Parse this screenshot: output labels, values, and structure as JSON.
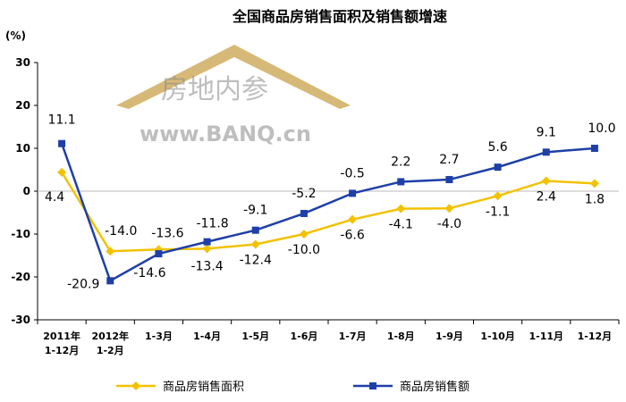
{
  "chart_data": {
    "type": "line",
    "title": "全国商品房销售面积及销售额增速",
    "ylabel": "(%)",
    "ylim": [
      -30,
      30
    ],
    "yticks": [
      -30,
      -20,
      -10,
      0,
      10,
      20,
      30
    ],
    "grid": false,
    "legend_position": "bottom",
    "categories": [
      [
        "2011年",
        "1-12月"
      ],
      [
        "2012年",
        "1-2月"
      ],
      [
        "1-3月"
      ],
      [
        "1-4月"
      ],
      [
        "1-5月"
      ],
      [
        "1-6月"
      ],
      [
        "1-7月"
      ],
      [
        "1-8月"
      ],
      [
        "1-9月"
      ],
      [
        "1-10月"
      ],
      [
        "1-11月"
      ],
      [
        "1-12月"
      ]
    ],
    "series": [
      {
        "name": "商品房销售面积",
        "color": "#f2c200",
        "marker": "diamond",
        "values": [
          4.4,
          -14.0,
          -13.6,
          -13.4,
          -12.4,
          -10.0,
          -6.6,
          -4.1,
          -4.0,
          -1.1,
          2.4,
          1.8
        ],
        "labels": [
          "4.4",
          "-14.0",
          "-13.6",
          "-13.4",
          "-12.4",
          "-10.0",
          "-6.6",
          "-4.1",
          "-4.0",
          "-1.1",
          "2.4",
          "1.8"
        ]
      },
      {
        "name": "商品房销售额",
        "color": "#1f3fa8",
        "marker": "square",
        "values": [
          11.1,
          -20.9,
          -14.6,
          -11.8,
          -9.1,
          -5.2,
          -0.5,
          2.2,
          2.7,
          5.6,
          9.1,
          10.0
        ],
        "labels": [
          "11.1",
          "-20.9",
          "-14.6",
          "-11.8",
          "-9.1",
          "-5.2",
          "-0.5",
          "2.2",
          "2.7",
          "5.6",
          "9.1",
          "10.0"
        ]
      }
    ]
  },
  "watermark": {
    "text_cn": "房地内参",
    "text_en": "www.BANQ.cn",
    "roof_icon": "house-roof-icon",
    "roof_color": "#c9a24a"
  }
}
